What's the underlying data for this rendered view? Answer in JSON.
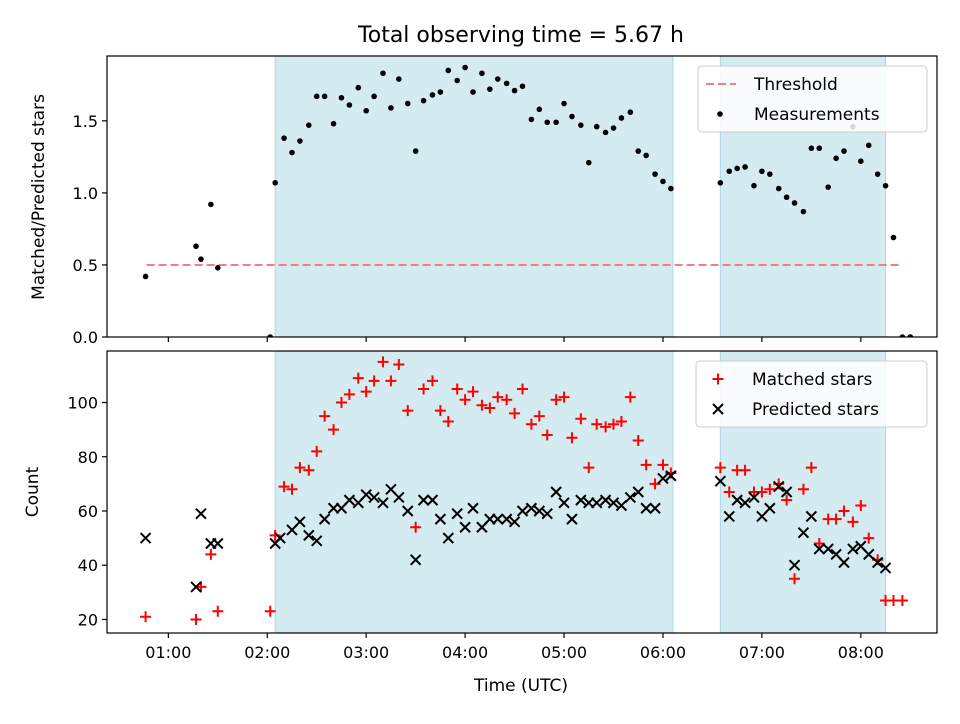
{
  "figure": {
    "title": "Total observing time = 5.67 h",
    "xlabel": "Time (UTC)",
    "xticks": [
      {
        "h": 1,
        "label": "01:00"
      },
      {
        "h": 2,
        "label": "02:00"
      },
      {
        "h": 3,
        "label": "03:00"
      },
      {
        "h": 4,
        "label": "04:00"
      },
      {
        "h": 5,
        "label": "05:00"
      },
      {
        "h": 6,
        "label": "06:00"
      },
      {
        "h": 7,
        "label": "07:00"
      },
      {
        "h": 8,
        "label": "08:00"
      }
    ],
    "xlim": [
      0.38,
      8.77
    ],
    "colors": {
      "shade": "#add8e6",
      "threshold": "#f08080",
      "matched": "#ff0000",
      "predicted": "#000000",
      "measure": "#000000"
    }
  },
  "chart_data": [
    {
      "type": "scatter",
      "ylabel": "Matched/Predicted stars",
      "ylim": [
        0,
        1.95
      ],
      "yticks": [
        {
          "v": 0.0,
          "label": "0.0"
        },
        {
          "v": 0.5,
          "label": "0.5"
        },
        {
          "v": 1.0,
          "label": "1.0"
        },
        {
          "v": 1.5,
          "label": "1.5"
        }
      ],
      "shaded_intervals": [
        [
          2.08,
          6.1
        ],
        [
          6.58,
          8.25
        ]
      ],
      "legend": [
        {
          "label": "Threshold",
          "style": "dashed-line"
        },
        {
          "label": "Measurements",
          "style": "dot"
        }
      ],
      "legend_position": "upper right",
      "threshold": {
        "name": "Threshold",
        "y": 0.5,
        "x_range": [
          0.78,
          8.42
        ]
      },
      "series": [
        {
          "name": "Measurements",
          "marker": "dot",
          "points": [
            [
              0.77,
              0.42
            ],
            [
              1.28,
              0.63
            ],
            [
              1.33,
              0.54
            ],
            [
              1.43,
              0.92
            ],
            [
              1.5,
              0.48
            ],
            [
              2.03,
              0.0
            ],
            [
              2.08,
              1.07
            ],
            [
              2.17,
              1.38
            ],
            [
              2.25,
              1.28
            ],
            [
              2.33,
              1.36
            ],
            [
              2.42,
              1.47
            ],
            [
              2.5,
              1.67
            ],
            [
              2.58,
              1.67
            ],
            [
              2.67,
              1.48
            ],
            [
              2.75,
              1.66
            ],
            [
              2.83,
              1.61
            ],
            [
              2.92,
              1.73
            ],
            [
              3.0,
              1.57
            ],
            [
              3.08,
              1.67
            ],
            [
              3.17,
              1.83
            ],
            [
              3.25,
              1.59
            ],
            [
              3.33,
              1.79
            ],
            [
              3.42,
              1.62
            ],
            [
              3.5,
              1.29
            ],
            [
              3.58,
              1.64
            ],
            [
              3.67,
              1.68
            ],
            [
              3.75,
              1.7
            ],
            [
              3.83,
              1.85
            ],
            [
              3.92,
              1.78
            ],
            [
              4.0,
              1.87
            ],
            [
              4.08,
              1.7
            ],
            [
              4.17,
              1.83
            ],
            [
              4.25,
              1.72
            ],
            [
              4.33,
              1.79
            ],
            [
              4.42,
              1.76
            ],
            [
              4.5,
              1.71
            ],
            [
              4.58,
              1.74
            ],
            [
              4.67,
              1.51
            ],
            [
              4.75,
              1.58
            ],
            [
              4.83,
              1.49
            ],
            [
              4.92,
              1.49
            ],
            [
              5.0,
              1.62
            ],
            [
              5.08,
              1.53
            ],
            [
              5.17,
              1.47
            ],
            [
              5.25,
              1.21
            ],
            [
              5.33,
              1.46
            ],
            [
              5.42,
              1.42
            ],
            [
              5.5,
              1.45
            ],
            [
              5.58,
              1.52
            ],
            [
              5.67,
              1.56
            ],
            [
              5.75,
              1.29
            ],
            [
              5.83,
              1.26
            ],
            [
              5.92,
              1.13
            ],
            [
              6.0,
              1.08
            ],
            [
              6.08,
              1.03
            ],
            [
              6.58,
              1.07
            ],
            [
              6.67,
              1.15
            ],
            [
              6.75,
              1.17
            ],
            [
              6.83,
              1.18
            ],
            [
              6.92,
              1.05
            ],
            [
              7.0,
              1.15
            ],
            [
              7.08,
              1.13
            ],
            [
              7.17,
              1.03
            ],
            [
              7.25,
              0.97
            ],
            [
              7.33,
              0.93
            ],
            [
              7.42,
              0.87
            ],
            [
              7.5,
              1.31
            ],
            [
              7.58,
              1.31
            ],
            [
              7.67,
              1.04
            ],
            [
              7.75,
              1.24
            ],
            [
              7.83,
              1.29
            ],
            [
              7.92,
              1.46
            ],
            [
              8.0,
              1.22
            ],
            [
              8.08,
              1.33
            ],
            [
              8.17,
              1.13
            ],
            [
              8.25,
              1.05
            ],
            [
              8.33,
              0.69
            ],
            [
              8.42,
              0.0
            ],
            [
              8.5,
              0.0
            ]
          ]
        }
      ]
    },
    {
      "type": "scatter",
      "ylabel": "Count",
      "ylim": [
        15,
        119
      ],
      "yticks": [
        {
          "v": 20,
          "label": "20"
        },
        {
          "v": 40,
          "label": "40"
        },
        {
          "v": 60,
          "label": "60"
        },
        {
          "v": 80,
          "label": "80"
        },
        {
          "v": 100,
          "label": "100"
        }
      ],
      "shaded_intervals": [
        [
          2.08,
          6.1
        ],
        [
          6.58,
          8.25
        ]
      ],
      "legend": [
        {
          "label": "Matched stars",
          "style": "plus"
        },
        {
          "label": "Predicted stars",
          "style": "x"
        }
      ],
      "legend_position": "upper right",
      "series": [
        {
          "name": "Matched stars",
          "marker": "plus",
          "points": [
            [
              0.77,
              21
            ],
            [
              1.28,
              20
            ],
            [
              1.33,
              32
            ],
            [
              1.43,
              44
            ],
            [
              1.5,
              23
            ],
            [
              2.03,
              23
            ],
            [
              2.08,
              51
            ],
            [
              2.17,
              69
            ],
            [
              2.25,
              68
            ],
            [
              2.33,
              76
            ],
            [
              2.42,
              75
            ],
            [
              2.5,
              82
            ],
            [
              2.58,
              95
            ],
            [
              2.67,
              90
            ],
            [
              2.75,
              100
            ],
            [
              2.83,
              103
            ],
            [
              2.92,
              109
            ],
            [
              3.0,
              104
            ],
            [
              3.08,
              108
            ],
            [
              3.17,
              115
            ],
            [
              3.25,
              108
            ],
            [
              3.33,
              114
            ],
            [
              3.42,
              97
            ],
            [
              3.5,
              54
            ],
            [
              3.58,
              105
            ],
            [
              3.67,
              108
            ],
            [
              3.75,
              97
            ],
            [
              3.83,
              93
            ],
            [
              3.92,
              105
            ],
            [
              4.0,
              101
            ],
            [
              4.08,
              104
            ],
            [
              4.17,
              99
            ],
            [
              4.25,
              98
            ],
            [
              4.33,
              102
            ],
            [
              4.42,
              101
            ],
            [
              4.5,
              96
            ],
            [
              4.58,
              105
            ],
            [
              4.67,
              92
            ],
            [
              4.75,
              95
            ],
            [
              4.83,
              88
            ],
            [
              4.92,
              101
            ],
            [
              5.0,
              102
            ],
            [
              5.08,
              87
            ],
            [
              5.17,
              94
            ],
            [
              5.25,
              76
            ],
            [
              5.33,
              92
            ],
            [
              5.42,
              91
            ],
            [
              5.5,
              92
            ],
            [
              5.58,
              93
            ],
            [
              5.67,
              102
            ],
            [
              5.75,
              86
            ],
            [
              5.83,
              77
            ],
            [
              5.92,
              70
            ],
            [
              6.0,
              77
            ],
            [
              6.08,
              74
            ],
            [
              6.58,
              76
            ],
            [
              6.67,
              67
            ],
            [
              6.75,
              75
            ],
            [
              6.83,
              75
            ],
            [
              6.92,
              67
            ],
            [
              7.0,
              67
            ],
            [
              7.08,
              68
            ],
            [
              7.17,
              70
            ],
            [
              7.25,
              64
            ],
            [
              7.33,
              35
            ],
            [
              7.42,
              68
            ],
            [
              7.5,
              76
            ],
            [
              7.58,
              48
            ],
            [
              7.67,
              57
            ],
            [
              7.75,
              57
            ],
            [
              7.83,
              60
            ],
            [
              7.92,
              56
            ],
            [
              8.0,
              62
            ],
            [
              8.08,
              50
            ],
            [
              8.17,
              42
            ],
            [
              8.25,
              27
            ],
            [
              8.33,
              27
            ],
            [
              8.42,
              27
            ]
          ]
        },
        {
          "name": "Predicted stars",
          "marker": "x",
          "points": [
            [
              0.77,
              50
            ],
            [
              1.28,
              32
            ],
            [
              1.33,
              59
            ],
            [
              1.43,
              48
            ],
            [
              1.5,
              48
            ],
            [
              2.08,
              48
            ],
            [
              2.13,
              50
            ],
            [
              2.25,
              53
            ],
            [
              2.33,
              56
            ],
            [
              2.42,
              51
            ],
            [
              2.5,
              49
            ],
            [
              2.58,
              57
            ],
            [
              2.67,
              61
            ],
            [
              2.75,
              61
            ],
            [
              2.83,
              64
            ],
            [
              2.92,
              63
            ],
            [
              3.0,
              66
            ],
            [
              3.08,
              65
            ],
            [
              3.17,
              63
            ],
            [
              3.25,
              68
            ],
            [
              3.33,
              65
            ],
            [
              3.42,
              60
            ],
            [
              3.5,
              42
            ],
            [
              3.58,
              64
            ],
            [
              3.67,
              64
            ],
            [
              3.75,
              57
            ],
            [
              3.83,
              50
            ],
            [
              3.92,
              59
            ],
            [
              4.0,
              54
            ],
            [
              4.08,
              61
            ],
            [
              4.17,
              54
            ],
            [
              4.25,
              57
            ],
            [
              4.33,
              57
            ],
            [
              4.42,
              57
            ],
            [
              4.5,
              56
            ],
            [
              4.58,
              60
            ],
            [
              4.67,
              61
            ],
            [
              4.75,
              60
            ],
            [
              4.83,
              59
            ],
            [
              4.92,
              67
            ],
            [
              5.0,
              63
            ],
            [
              5.08,
              57
            ],
            [
              5.17,
              64
            ],
            [
              5.25,
              63
            ],
            [
              5.33,
              63
            ],
            [
              5.42,
              64
            ],
            [
              5.5,
              63
            ],
            [
              5.58,
              62
            ],
            [
              5.67,
              65
            ],
            [
              5.75,
              67
            ],
            [
              5.83,
              61
            ],
            [
              5.92,
              61
            ],
            [
              6.0,
              72
            ],
            [
              6.08,
              73
            ],
            [
              6.58,
              71
            ],
            [
              6.67,
              58
            ],
            [
              6.75,
              64
            ],
            [
              6.83,
              63
            ],
            [
              6.92,
              65
            ],
            [
              7.0,
              58
            ],
            [
              7.08,
              61
            ],
            [
              7.17,
              69
            ],
            [
              7.25,
              67
            ],
            [
              7.33,
              40
            ],
            [
              7.42,
              52
            ],
            [
              7.5,
              58
            ],
            [
              7.58,
              46
            ],
            [
              7.67,
              46
            ],
            [
              7.75,
              44
            ],
            [
              7.83,
              41
            ],
            [
              7.92,
              46
            ],
            [
              8.0,
              47
            ],
            [
              8.08,
              44
            ],
            [
              8.17,
              41
            ],
            [
              8.25,
              39
            ]
          ]
        }
      ]
    }
  ]
}
